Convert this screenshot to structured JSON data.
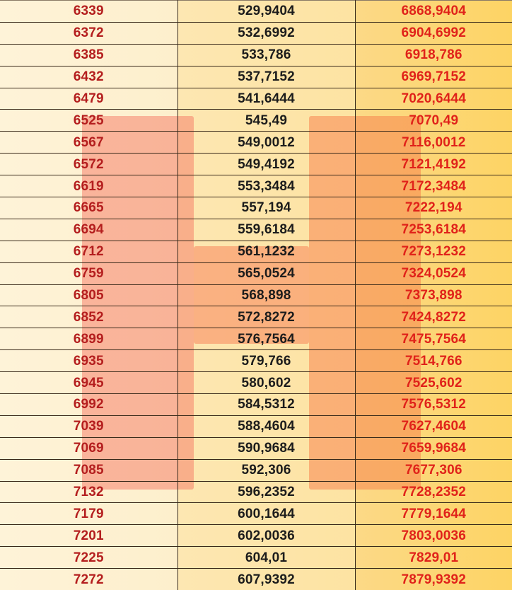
{
  "table": {
    "columns": [
      {
        "key": "base",
        "text_color": "#b41e1e"
      },
      {
        "key": "added",
        "text_color": "#1c1c1c"
      },
      {
        "key": "total",
        "text_color": "#e0221a"
      }
    ],
    "rows": [
      [
        "6339",
        "529,9404",
        "6868,9404"
      ],
      [
        "6372",
        "532,6992",
        "6904,6992"
      ],
      [
        "6385",
        "533,786",
        "6918,786"
      ],
      [
        "6432",
        "537,7152",
        "6969,7152"
      ],
      [
        "6479",
        "541,6444",
        "7020,6444"
      ],
      [
        "6525",
        "545,49",
        "7070,49"
      ],
      [
        "6567",
        "549,0012",
        "7116,0012"
      ],
      [
        "6572",
        "549,4192",
        "7121,4192"
      ],
      [
        "6619",
        "553,3484",
        "7172,3484"
      ],
      [
        "6665",
        "557,194",
        "7222,194"
      ],
      [
        "6694",
        "559,6184",
        "7253,6184"
      ],
      [
        "6712",
        "561,1232",
        "7273,1232"
      ],
      [
        "6759",
        "565,0524",
        "7324,0524"
      ],
      [
        "6805",
        "568,898",
        "7373,898"
      ],
      [
        "6852",
        "572,8272",
        "7424,8272"
      ],
      [
        "6899",
        "576,7564",
        "7475,7564"
      ],
      [
        "6935",
        "579,766",
        "7514,766"
      ],
      [
        "6945",
        "580,602",
        "7525,602"
      ],
      [
        "6992",
        "584,5312",
        "7576,5312"
      ],
      [
        "7039",
        "588,4604",
        "7627,4604"
      ],
      [
        "7069",
        "590,9684",
        "7659,9684"
      ],
      [
        "7085",
        "592,306",
        "7677,306"
      ],
      [
        "7132",
        "596,2352",
        "7728,2352"
      ],
      [
        "7179",
        "600,1644",
        "7779,1644"
      ],
      [
        "7201",
        "602,0036",
        "7803,0036"
      ],
      [
        "7225",
        "604,01",
        "7829,01"
      ],
      [
        "7272",
        "607,9392",
        "7879,9392"
      ]
    ]
  },
  "watermark": {
    "shape": "letter-H",
    "color": "#f67864"
  },
  "colors": {
    "col1_bg": "#fef2d4",
    "col2_bg": "#fde5aa",
    "col3_bg": "#fdd674",
    "grid_line": "#3a2a1a"
  }
}
